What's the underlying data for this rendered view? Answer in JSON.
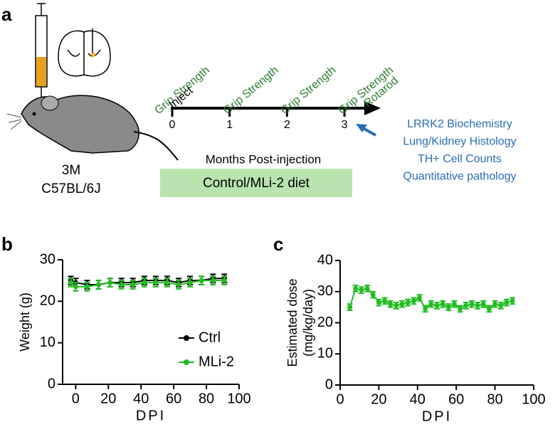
{
  "panel_labels": [
    "a",
    "b",
    "c"
  ],
  "panel_a": {
    "mouse_labels": [
      "3M",
      "C57BL/6J"
    ],
    "timeline": {
      "ticks": [
        0,
        1,
        2,
        3
      ],
      "grip_labels": [
        "Grip Strength",
        "Grip Strength",
        "Grip Strength",
        "Grip Strength"
      ],
      "inject": "Inject",
      "rotarod": "Rotarod",
      "xlabel": "Months Post-injection",
      "diet": "Control/MLi-2 diet"
    },
    "outcomes": [
      "LRRK2 Biochemistry",
      "Lung/Kidney Histology",
      "TH+ Cell Counts",
      "Quantitative pathology"
    ]
  },
  "chart_data": [
    {
      "type": "line",
      "xlabel": "DPI",
      "ylabel": [
        "Weight (g)"
      ],
      "xlim": [
        -8,
        100
      ],
      "xticks": [
        0,
        20,
        40,
        60,
        80,
        100
      ],
      "ylim": [
        0,
        30
      ],
      "yticks": [
        0,
        10,
        20,
        30
      ],
      "legend": "center-right",
      "x": [
        -3,
        0,
        7,
        14,
        21,
        28,
        35,
        42,
        49,
        56,
        63,
        70,
        77,
        84,
        91
      ],
      "series": [
        {
          "name": "Ctrl",
          "color": "#000000",
          "values": [
            25,
            24.5,
            24,
            24,
            24.5,
            24.5,
            24.5,
            25,
            25,
            25,
            24.5,
            25,
            25,
            25.5,
            25.5
          ],
          "errors": [
            1,
            1,
            1,
            1,
            1,
            1,
            1,
            1,
            1,
            1,
            1,
            1,
            1,
            1,
            1
          ]
        },
        {
          "name": "MLi-2",
          "color": "#22bb22",
          "values": [
            24.5,
            23.5,
            23.5,
            24,
            24.5,
            24,
            24,
            24.5,
            24.5,
            24.5,
            24,
            24.5,
            25,
            25,
            25
          ],
          "errors": [
            1,
            1,
            1,
            1,
            1,
            1,
            1,
            1,
            1,
            1,
            1,
            1,
            1,
            1,
            1
          ]
        }
      ]
    },
    {
      "type": "line",
      "xlabel": "DPI",
      "ylabel": [
        "Estimated dose",
        "(mg/kg/day)"
      ],
      "xlim": [
        0,
        100
      ],
      "xticks": [
        0,
        20,
        40,
        60,
        80,
        100
      ],
      "ylim": [
        0,
        40
      ],
      "yticks": [
        0,
        10,
        20,
        30,
        40
      ],
      "x": [
        5,
        8,
        11,
        14,
        17,
        20,
        23,
        26,
        29,
        32,
        35,
        38,
        41,
        44,
        47,
        50,
        53,
        56,
        59,
        62,
        65,
        68,
        71,
        74,
        77,
        80,
        83,
        86,
        89
      ],
      "series": [
        {
          "color": "#22bb22",
          "values": [
            25,
            31,
            30.5,
            31,
            29,
            26.5,
            27,
            26,
            25.5,
            26,
            26.5,
            27,
            28,
            24.5,
            26,
            25.5,
            26,
            25,
            26,
            24.5,
            25.5,
            26,
            25.5,
            26,
            24.5,
            26,
            25.5,
            26.5,
            27
          ],
          "errors": [
            1,
            1,
            1,
            1,
            1,
            1,
            1,
            1,
            1,
            1,
            1,
            1,
            1,
            1,
            1,
            1,
            1,
            1,
            1,
            1,
            1,
            1,
            1,
            1,
            1,
            1,
            1,
            1,
            1
          ]
        }
      ]
    }
  ]
}
